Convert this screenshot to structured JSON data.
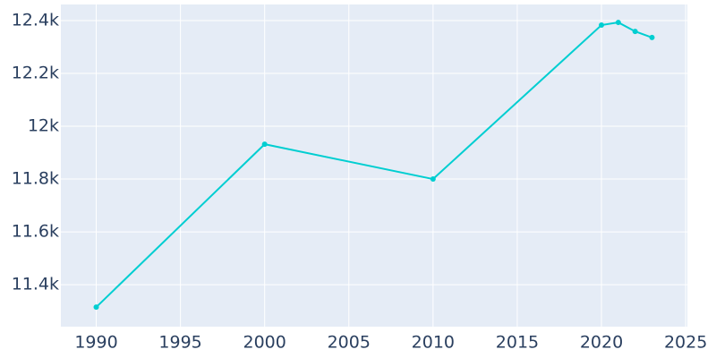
{
  "chart_data": {
    "type": "line",
    "x": [
      1990,
      2000,
      2010,
      2020,
      2021,
      2022,
      2023
    ],
    "series": [
      {
        "color": "#00ced1",
        "values": [
          11315,
          11932,
          11800,
          12383,
          12393,
          12359,
          12336
        ]
      }
    ],
    "xlim": [
      1987.9,
      2025.1
    ],
    "xticks": [
      1990,
      1995,
      2000,
      2005,
      2010,
      2015,
      2020,
      2025
    ],
    "ylim": [
      11241,
      12461
    ],
    "yticks": [
      {
        "value": 11400,
        "label": "11.4k"
      },
      {
        "value": 11600,
        "label": "11.6k"
      },
      {
        "value": 11800,
        "label": "11.8k"
      },
      {
        "value": 12000,
        "label": "12k"
      },
      {
        "value": 12200,
        "label": "12.2k"
      },
      {
        "value": 12400,
        "label": "12.4k"
      }
    ],
    "grid": true
  }
}
